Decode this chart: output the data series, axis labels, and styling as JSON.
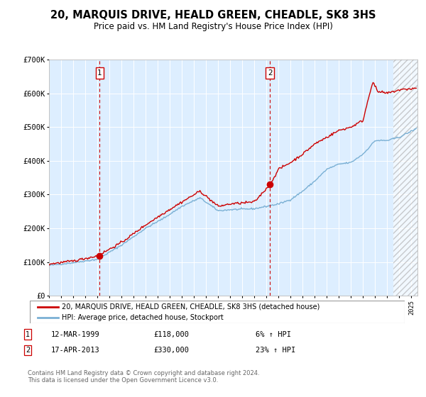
{
  "title": "20, MARQUIS DRIVE, HEALD GREEN, CHEADLE, SK8 3HS",
  "subtitle": "Price paid vs. HM Land Registry's House Price Index (HPI)",
  "legend_line1": "20, MARQUIS DRIVE, HEALD GREEN, CHEADLE, SK8 3HS (detached house)",
  "legend_line2": "HPI: Average price, detached house, Stockport",
  "footnote": "Contains HM Land Registry data © Crown copyright and database right 2024.\nThis data is licensed under the Open Government Licence v3.0.",
  "transaction1_date": "12-MAR-1999",
  "transaction1_price": "£118,000",
  "transaction1_hpi": "6% ↑ HPI",
  "transaction2_date": "17-APR-2013",
  "transaction2_price": "£330,000",
  "transaction2_hpi": "23% ↑ HPI",
  "red_color": "#cc0000",
  "blue_color": "#7ab0d4",
  "bg_color": "#ddeeff",
  "ylim": [
    0,
    700000
  ],
  "yticks": [
    0,
    100000,
    200000,
    300000,
    400000,
    500000,
    600000,
    700000
  ],
  "ytick_labels": [
    "£0",
    "£100K",
    "£200K",
    "£300K",
    "£400K",
    "£500K",
    "£600K",
    "£700K"
  ],
  "marker1_x": 1999.2,
  "marker1_y": 118000,
  "marker2_x": 2013.3,
  "marker2_y": 330000,
  "hatch_start": 2023.5,
  "xlim_start": 1995,
  "xlim_end": 2025.5
}
